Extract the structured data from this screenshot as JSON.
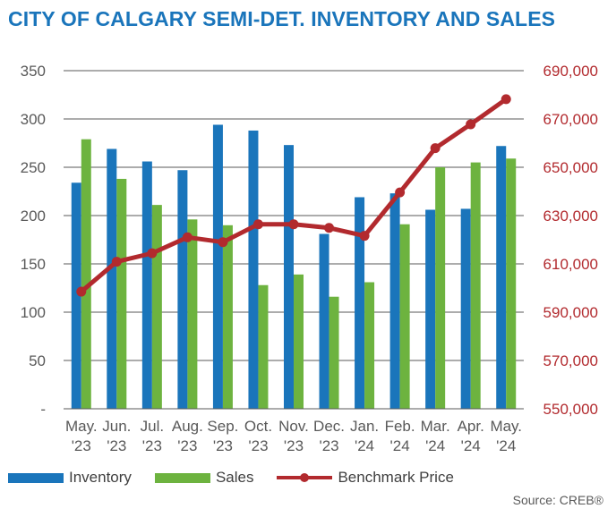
{
  "title": "CITY OF CALGARY SEMI-DET. INVENTORY AND SALES",
  "source": "Source: CREB®",
  "chart_data": {
    "type": "bar+line",
    "categories": [
      [
        "May.",
        "'23"
      ],
      [
        "Jun.",
        "'23"
      ],
      [
        "Jul.",
        "'23"
      ],
      [
        "Aug.",
        "'23"
      ],
      [
        "Sep.",
        "'23"
      ],
      [
        "Oct.",
        "'23"
      ],
      [
        "Nov.",
        "'23"
      ],
      [
        "Dec.",
        "'23"
      ],
      [
        "Jan.",
        "'24"
      ],
      [
        "Feb.",
        "'24"
      ],
      [
        "Mar.",
        "'24"
      ],
      [
        "Apr.",
        "'24"
      ],
      [
        "May.",
        "'24"
      ]
    ],
    "series": [
      {
        "name": "Inventory",
        "type": "bar",
        "axis": "left",
        "color": "#1A75BB",
        "values": [
          234,
          269,
          256,
          247,
          294,
          288,
          273,
          181,
          219,
          223,
          206,
          207,
          272
        ]
      },
      {
        "name": "Sales",
        "type": "bar",
        "axis": "left",
        "color": "#6DB33F",
        "values": [
          279,
          238,
          211,
          196,
          190,
          128,
          139,
          116,
          131,
          191,
          250,
          255,
          259
        ]
      },
      {
        "name": "Benchmark Price",
        "type": "line",
        "axis": "right",
        "color": "#B22A2E",
        "values": [
          598500,
          610900,
          614400,
          621000,
          619000,
          626400,
          626400,
          624900,
          621600,
          639600,
          657900,
          667800,
          678200
        ]
      }
    ],
    "y_left": {
      "min": 0,
      "max": 350,
      "step": 50,
      "tick_labels": [
        "-",
        "50",
        "100",
        "150",
        "200",
        "250",
        "300",
        "350"
      ]
    },
    "y_right": {
      "min": 550000,
      "max": 690000,
      "step": 20000,
      "tick_labels": [
        "550,000",
        "570,000",
        "590,000",
        "610,000",
        "630,000",
        "650,000",
        "670,000",
        "690,000"
      ]
    },
    "legend_position": "bottom"
  }
}
